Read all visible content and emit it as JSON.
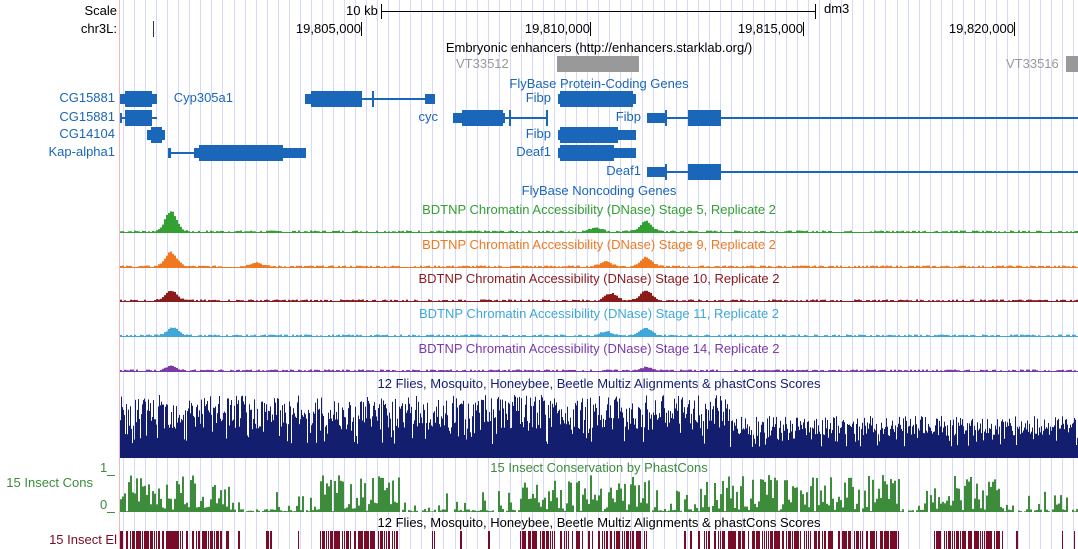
{
  "ruler": {
    "scale_label": "Scale",
    "chrom_label": "chr3L:",
    "scale_bar": "10 kb",
    "assembly": "dm3",
    "ticks": [
      "19,805,000",
      "19,810,000",
      "19,815,000",
      "19,820,000"
    ]
  },
  "tracks": {
    "enhancers": {
      "title": "Embryonic enhancers (http://enhancers.starklab.org/)",
      "items": [
        "VT33512",
        "VT33516"
      ],
      "color": "#999999"
    },
    "flybase_coding": {
      "title": "FlyBase Protein-Coding Genes",
      "genes": [
        "CG15881",
        "CG15881",
        "CG14104",
        "Kap-alpha1",
        "Cyp305a1",
        "cyc",
        "Fibp",
        "Fibp",
        "Fibp",
        "Deaf1",
        "Deaf1"
      ],
      "color": "#1a66b8"
    },
    "flybase_noncoding": {
      "title": "FlyBase Noncoding Genes"
    },
    "dnase": [
      {
        "title": "BDTNP Chromatin Accessibility (DNase) Stage 5, Replicate 2",
        "color": "#33a033"
      },
      {
        "title": "BDTNP Chromatin Accessibility (DNase) Stage 9, Replicate 2",
        "color": "#f07820"
      },
      {
        "title": "BDTNP Chromatin Accessibility (DNase) Stage 10, Replicate 2",
        "color": "#8b1a1a"
      },
      {
        "title": "BDTNP Chromatin Accessibility (DNase) Stage 11, Replicate 2",
        "color": "#40a8d8"
      },
      {
        "title": "BDTNP Chromatin Accessibility (DNase) Stage 14, Replicate 2",
        "color": "#7a3aa8"
      }
    ],
    "multiz": {
      "title": "12 Flies, Mosquito, Honeybee, Beetle Multiz Alignments & phastCons Scores",
      "color": "#141e6e"
    },
    "phastcons": {
      "title": "15 Insect Conservation by PhastCons",
      "label": "15 Insect Cons",
      "ymax": "1",
      "ymin": "0",
      "color": "#3c8c3c"
    },
    "elements": {
      "title": "12 Flies, Mosquito, Honeybee, Beetle Multiz Alignments & phastCons Scores",
      "label": "15 Insect El",
      "color": "#780c28"
    }
  }
}
